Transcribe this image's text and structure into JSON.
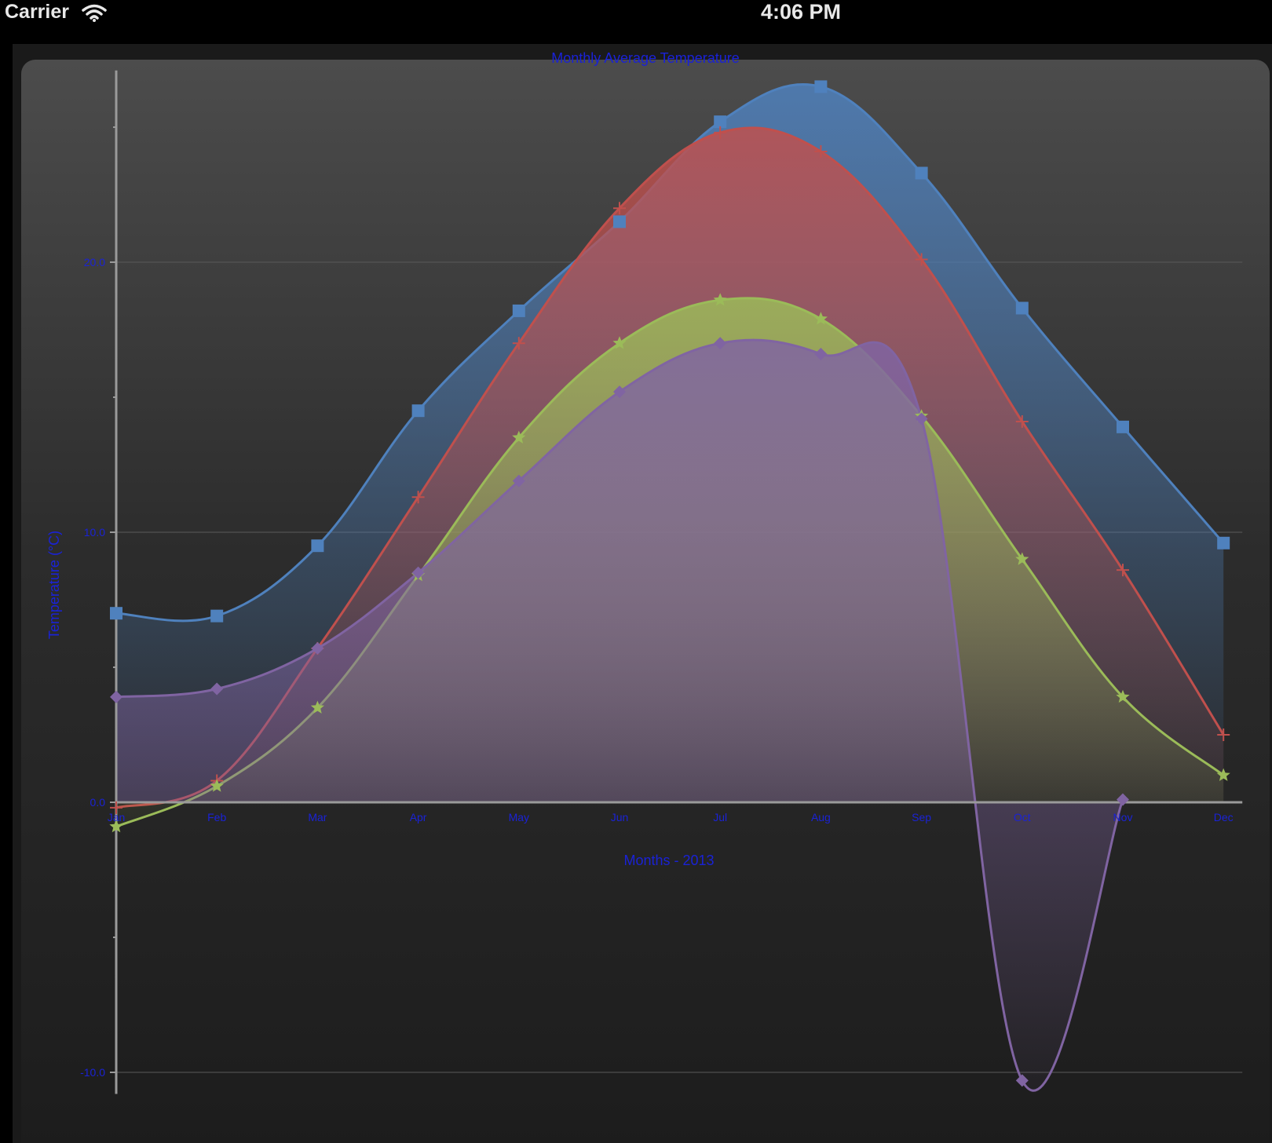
{
  "status_bar": {
    "carrier": "Carrier",
    "time": "4:06 PM",
    "wifi_icon": "wifi-icon"
  },
  "chart_data": {
    "type": "area",
    "title": "Monthly Average Temperature",
    "xlabel": "Months - 2013",
    "ylabel": "Temperature (°C)",
    "categories": [
      "Jan",
      "Feb",
      "Mar",
      "Apr",
      "May",
      "Jun",
      "Jul",
      "Aug",
      "Sep",
      "Oct",
      "Nov",
      "Dec"
    ],
    "y_ticks": [
      "20.0",
      "10.0",
      "0.0",
      "-10.0"
    ],
    "ylim": [
      -10.8,
      27.1
    ],
    "grid": true,
    "legend": "none",
    "series": [
      {
        "color": "#4f81bd",
        "marker": "square",
        "values": [
          7.0,
          6.9,
          9.5,
          14.5,
          18.2,
          21.5,
          25.2,
          26.5,
          23.3,
          18.3,
          13.9,
          9.6
        ]
      },
      {
        "color": "#c0504d",
        "marker": "cross",
        "values": [
          -0.2,
          0.8,
          5.7,
          11.3,
          17.0,
          22.0,
          24.8,
          24.1,
          20.1,
          14.1,
          8.6,
          2.5
        ]
      },
      {
        "color": "#9bbb59",
        "marker": "star",
        "values": [
          -0.9,
          0.6,
          3.5,
          8.4,
          13.5,
          17.0,
          18.6,
          17.9,
          14.3,
          9.0,
          3.9,
          1.0
        ]
      },
      {
        "color": "#8064a2",
        "marker": "diamond",
        "values": [
          3.9,
          4.2,
          5.7,
          8.5,
          11.9,
          15.2,
          17.0,
          16.6,
          14.2,
          -10.3,
          0.1,
          null
        ]
      }
    ]
  }
}
